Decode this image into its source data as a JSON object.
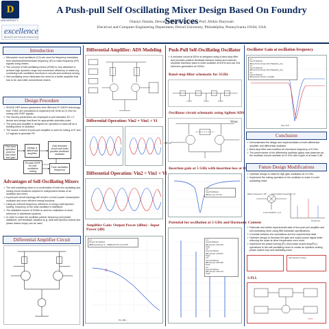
{
  "header": {
    "logo_text": "Drexel",
    "logo_sub": "UNIVERSITY",
    "lab_logo": "excellence",
    "lab_sub": "Electronic and Computer Engineering",
    "title": "A Push-pull Self  Oscillating Mixer Design Based On Foundry Services",
    "authors": "Olaniyi Jimadu, Dewakar Madupuri Kandra, Prof. Afshin Daryoush",
    "affiliation": "Electrical and Computer Engineering Department, Drexel University, Philadelphia, Pennsylvania 19104, USA"
  },
  "intro": {
    "heading": "Introduction",
    "items": [
      "Microwave local oscillators (LO) are used for frequency translation from baseband/Intermediate frequency (IF) to radio frequency (RF) signals using mixers.",
      "The concept of self-oscillating mixers (SOM) is very attractive to achieve high dynamic range and conversion efficiency in mixers by combining both oscillation functions in circuits and nonlinear mixing.",
      "Self-oscillating mixer eliminates the need for a buffer amplifier that has to be used after conventional mixers."
    ]
  },
  "design": {
    "heading": "Design Procedure",
    "items": [
      "SiGe/Si HBT device parameters from IBM and IS CMOS technology from TSMC are considered to implement the SOM at 10 GHz for mixing with IF/RF signals.",
      "The foundry parameters are employed to plot transistor DC I-V device and design load lines for appropriate operation point.",
      "The push-pull amplifier is designed for operation in class AB as a building block of oscillator.",
      "The source current of push-pull amplifier is used for mixing of IF and LO signals to generate RF."
    ],
    "flow": [
      "Pick best operation point for low noise and gain",
      "Design a differential amplifier",
      "Add resonant circuit and build positive feedback oscillator",
      "Provide IF/RF for self-oscillation mixing",
      "Tune oscillation frequency"
    ]
  },
  "advantages": {
    "heading": "Advantages of Self-Oscillating Mixers",
    "items": [
      "The self-oscillating mixer is a combination of both the oscillating and mixing circuit functions required in independent blocks of an oscillator and mixer.",
      "A push-pull circuit topology will result in a lower power consumption oscillator and more efficient mixing functions.",
      "Using an external frequency reference or using a self-injection locking, frequency of the local oscillator is stabilized.",
      "The stabilized source of SOMs is used for realization of clock reference in distributed systems.",
      "In order to make the oscillator partner frequency and phase stabilized, self feedback variation (e.g. dual self-injection locked and phase locked loops) can be used."
    ]
  },
  "diff_amp_design": {
    "heading": "Differential Amplifier Circuit"
  },
  "col2": {
    "ads_heading": "Differential Amplifier: ADS Modeling",
    "op_heading": "Differential Operation: Vin2 = Vin1 + Vi",
    "gain_heading": "Amplifier Gain: Output Power (dBm) - Input Power (dB)",
    "gain_legend": [
      "m1",
      "Pinput=10.3002Hz",
      "dB(Bo(VoutF)est.1) - dB(Bo(Vin*Sin.1))=5.487"
    ],
    "x_label": "Pin, dBm"
  },
  "col3": {
    "heading": "Push-Pull Self-Oscillating Oscillator",
    "items": [
      "A resonant circuit at 5GHz is designed using a band-stop filter and provides positive feedback between bases and collector separate transistor pairs to build oscillator at 5GHz and use 2nd harmonic generation at 10GHz."
    ],
    "band_stop_heading": "Band-stop-filter schematic for 5GHz",
    "osc_heading": "Oscillator circuit schematic using Agilent ADS",
    "insertion_heading": "Insertion gain at 5 GHz with insertion loss at 10GHz",
    "insertion_legend": [
      "m1",
      "freq=5.000GHz",
      "dB(S(2,1))=-37.011"
    ],
    "potential_heading": "Potential for oscillation at 5 GHz and Harmonic Content",
    "potential_legend": [
      "m1",
      "freq=5.000GHz",
      "dBm(Vout)=-160.461",
      "Peak",
      "m2",
      "freq=10.00GHz",
      "dBm(Vout)=-245.817",
      "Peak",
      "m3",
      "freq=15.00GHz",
      "dBm(Vout)=-256.346",
      "Peak",
      "m4",
      "freq=20.00GHz",
      "dBm(Vout)=-290.731",
      "Peak"
    ],
    "rf_in": "RF in",
    "vout": "Wout"
  },
  "col4": {
    "gain_heading": "Oscillator Gain at oscillation frequency",
    "gain_legend": [
      "m1",
      "freq=5.000GHz",
      "dB(Vo/Vi/Vm(Tout)=-86.4*b8a(fr(fe_2m)",
      "m2",
      "freq=5.000GHz",
      "dB(Vo/Vi/Vm(Tout)=-86.4*b8a(fr(fe_2m)",
      "m3",
      "freq=5.000GHz",
      "dB(Vo/Vi/Vm(Tout)=-1m4(38)"
    ],
    "freq_label": "freq, GHz",
    "conclusion_heading": "Conclusion",
    "conclusion_items": [
      "Demonstrated the design and implementation of both differential amplifier and differential oscillator.",
      "Band-stop filter was modeled at resonance frequency of 5 GHz.",
      "The performance of the differential oscillator (gain) was observed as the oscillator should oscillate at 10 GHz with a gain of at least 3 dB."
    ],
    "future_heading": "Future Design Modifications",
    "future_items_1": [
      "Optimize design to observe high gain oscillation at 10 GHz.",
      "Implement the mixing operation to the oscillator to make it a self-oscillating mixer."
    ],
    "mix_labels": {
      "rf": "Radio Frequency f_RF",
      "if": "Intermediate Frequency f_IF",
      "lo": "Local Oscillator f_LO",
      "freq": "Frequency"
    },
    "future_items_2": [
      "Fabricate and obtain experimental data of the push pull amplifier and self-oscillating mixer using IBM substrate specifications.",
      "Correlate between the simulations and the experimental data.",
      "Optimize design to increase the gain and output power signal while reducing the noise at other frequencies even more.",
      "Implement the phase locking (PL) and phase locked loop(PLL) operations to the self-oscillating mixer to create an injection locking phase locked loop self-oscillating mixer."
    ],
    "pll_label": "Self injection locking",
    "spll_label": "S-PLL",
    "spll_label_2": "S-PLL"
  }
}
